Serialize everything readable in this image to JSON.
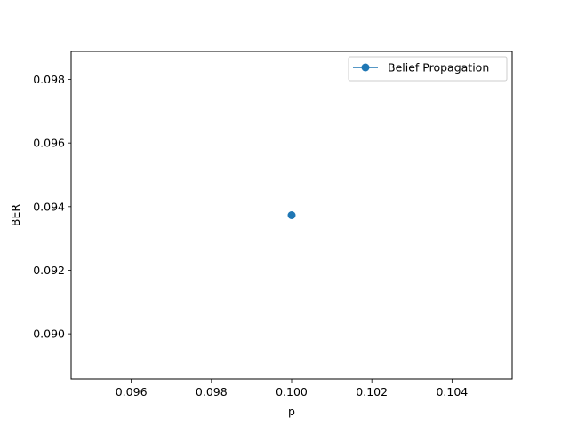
{
  "chart_data": {
    "type": "line",
    "title": "",
    "xlabel": "p",
    "ylabel": "BER",
    "xlim": [
      0.0945,
      0.1055
    ],
    "ylim": [
      0.08858,
      0.09888
    ],
    "xticks": [
      "0.096",
      "0.098",
      "0.100",
      "0.102",
      "0.104"
    ],
    "xtick_values": [
      0.096,
      0.098,
      0.1,
      0.102,
      0.104
    ],
    "yticks": [
      "0.090",
      "0.092",
      "0.094",
      "0.096",
      "0.098"
    ],
    "ytick_values": [
      0.09,
      0.092,
      0.094,
      0.096,
      0.098
    ],
    "grid": false,
    "legend_position": "top-right",
    "series": [
      {
        "name": "Belief Propagation",
        "color": "#1f77b4",
        "marker": "circle",
        "x": [
          0.1
        ],
        "y": [
          0.09373
        ]
      }
    ]
  }
}
